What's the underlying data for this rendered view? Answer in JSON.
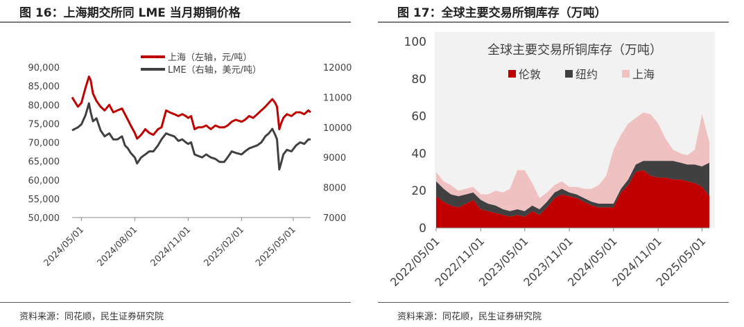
{
  "left": {
    "figure_title": "图 16：上海期交所同 LME 当月期铜价格",
    "source": "资料来源：同花顺，民生证券研究院",
    "chart_data": {
      "type": "line",
      "title": "",
      "x_ticks": [
        "2024/05/01",
        "2024/08/01",
        "2024/11/01",
        "2025/02/01",
        "2025/05/01"
      ],
      "x_range": [
        "2024-04-15",
        "2025-05-31"
      ],
      "left_axis": {
        "ylim": [
          50000,
          90000
        ],
        "ticks": [
          "50,000",
          "55,000",
          "60,000",
          "65,000",
          "70,000",
          "75,000",
          "80,000",
          "85,000",
          "90,000"
        ]
      },
      "right_axis": {
        "ylim": [
          7000,
          12000
        ],
        "ticks": [
          "7000",
          "8000",
          "9000",
          "10000",
          "11000",
          "12000"
        ]
      },
      "legend": [
        "上海（左轴，元/吨）",
        "LME（右轴，美元/吨）"
      ],
      "legend_position": "top-right",
      "colors": {
        "shanghai": "#c00000",
        "lme": "#404040"
      },
      "series": [
        {
          "name": "上海（左轴，元/吨）",
          "axis": "left",
          "x": [
            "2024-04-15",
            "2024-04-25",
            "2024-05-01",
            "2024-05-08",
            "2024-05-14",
            "2024-05-17",
            "2024-05-21",
            "2024-05-27",
            "2024-06-03",
            "2024-06-10",
            "2024-06-18",
            "2024-06-25",
            "2024-07-02",
            "2024-07-10",
            "2024-07-15",
            "2024-07-20",
            "2024-07-25",
            "2024-08-01",
            "2024-08-05",
            "2024-08-12",
            "2024-08-19",
            "2024-08-26",
            "2024-09-02",
            "2024-09-10",
            "2024-09-16",
            "2024-09-24",
            "2024-09-30",
            "2024-10-08",
            "2024-10-15",
            "2024-10-22",
            "2024-10-28",
            "2024-11-01",
            "2024-11-06",
            "2024-11-12",
            "2024-11-18",
            "2024-11-25",
            "2024-12-02",
            "2024-12-10",
            "2024-12-18",
            "2024-12-25",
            "2025-01-02",
            "2025-01-08",
            "2025-01-15",
            "2025-01-22",
            "2025-02-01",
            "2025-02-07",
            "2025-02-14",
            "2025-02-21",
            "2025-02-28",
            "2025-03-07",
            "2025-03-14",
            "2025-03-20",
            "2025-03-26",
            "2025-03-31",
            "2025-04-03",
            "2025-04-07",
            "2025-04-10",
            "2025-04-14",
            "2025-04-20",
            "2025-04-28",
            "2025-05-06",
            "2025-05-13",
            "2025-05-20",
            "2025-05-27",
            "2025-05-31"
          ],
          "values": [
            82000,
            79500,
            80500,
            84500,
            87500,
            86500,
            83000,
            81000,
            79500,
            78500,
            80000,
            78000,
            78500,
            79000,
            77500,
            76000,
            74500,
            72500,
            71000,
            72000,
            73500,
            72500,
            72000,
            73500,
            74000,
            78500,
            78000,
            77500,
            77000,
            77500,
            77000,
            76500,
            77000,
            73500,
            74000,
            74000,
            74500,
            73500,
            74500,
            74000,
            74000,
            74500,
            75500,
            76000,
            75500,
            76000,
            77000,
            76500,
            77500,
            78500,
            79500,
            80500,
            81500,
            80500,
            79500,
            73500,
            75000,
            76500,
            77500,
            77000,
            78000,
            78000,
            77500,
            78500,
            78000
          ]
        },
        {
          "name": "LME（右轴，美元/吨）",
          "axis": "right",
          "x": [
            "2024-04-15",
            "2024-04-25",
            "2024-05-01",
            "2024-05-08",
            "2024-05-14",
            "2024-05-17",
            "2024-05-21",
            "2024-05-27",
            "2024-06-03",
            "2024-06-10",
            "2024-06-18",
            "2024-06-25",
            "2024-07-02",
            "2024-07-10",
            "2024-07-15",
            "2024-07-20",
            "2024-07-25",
            "2024-08-01",
            "2024-08-05",
            "2024-08-12",
            "2024-08-19",
            "2024-08-26",
            "2024-09-02",
            "2024-09-10",
            "2024-09-16",
            "2024-09-24",
            "2024-09-30",
            "2024-10-08",
            "2024-10-15",
            "2024-10-22",
            "2024-10-28",
            "2024-11-01",
            "2024-11-06",
            "2024-11-12",
            "2024-11-18",
            "2024-11-25",
            "2024-12-02",
            "2024-12-10",
            "2024-12-18",
            "2024-12-25",
            "2025-01-02",
            "2025-01-08",
            "2025-01-15",
            "2025-01-22",
            "2025-02-01",
            "2025-02-07",
            "2025-02-14",
            "2025-02-21",
            "2025-02-28",
            "2025-03-07",
            "2025-03-14",
            "2025-03-20",
            "2025-03-26",
            "2025-03-31",
            "2025-04-03",
            "2025-04-07",
            "2025-04-10",
            "2025-04-14",
            "2025-04-20",
            "2025-04-28",
            "2025-05-06",
            "2025-05-13",
            "2025-05-20",
            "2025-05-27",
            "2025-05-31"
          ],
          "values": [
            9900,
            10000,
            10100,
            10400,
            10800,
            10500,
            10200,
            10300,
            9900,
            9700,
            9800,
            9600,
            9600,
            9700,
            9400,
            9300,
            9150,
            9000,
            8800,
            9000,
            9100,
            9200,
            9200,
            9400,
            9600,
            9800,
            9750,
            9700,
            9550,
            9600,
            9500,
            9450,
            9500,
            9100,
            9050,
            9000,
            9100,
            9000,
            8950,
            8850,
            8850,
            9000,
            9200,
            9150,
            9100,
            9200,
            9300,
            9350,
            9400,
            9500,
            9700,
            9800,
            9950,
            9750,
            9600,
            8600,
            8800,
            9100,
            9250,
            9200,
            9400,
            9500,
            9450,
            9600,
            9600
          ]
        }
      ]
    }
  },
  "right": {
    "figure_title": "图 17：全球主要交易所铜库存（万吨）",
    "source": "资料来源：同花顺，民生证券研究院",
    "chart_data": {
      "type": "area",
      "stacked": true,
      "title": "全球主要交易所铜库存（万吨）",
      "x_ticks": [
        "2022/05/01",
        "2022/11/01",
        "2023/05/01",
        "2023/11/01",
        "2024/05/01",
        "2024/11/01",
        "2025/05/01"
      ],
      "x_range": [
        "2022-05-01",
        "2025-05-31"
      ],
      "ylim": [
        0,
        100
      ],
      "y_ticks": [
        "0",
        "20",
        "40",
        "60",
        "80",
        "100"
      ],
      "grid": false,
      "legend": [
        "伦敦",
        "纽约",
        "上海"
      ],
      "legend_position": "top",
      "colors": {
        "london": "#c00000",
        "newyork": "#404040",
        "shanghai": "#f0c1c1",
        "background": "#f2f2f2"
      },
      "x": [
        "2022-05-01",
        "2022-06-01",
        "2022-07-01",
        "2022-08-01",
        "2022-09-01",
        "2022-10-01",
        "2022-11-01",
        "2022-12-01",
        "2023-01-01",
        "2023-02-01",
        "2023-03-01",
        "2023-04-01",
        "2023-05-01",
        "2023-06-01",
        "2023-07-01",
        "2023-08-01",
        "2023-09-01",
        "2023-10-01",
        "2023-11-01",
        "2023-12-01",
        "2024-01-01",
        "2024-02-01",
        "2024-03-01",
        "2024-04-01",
        "2024-05-01",
        "2024-06-01",
        "2024-07-01",
        "2024-08-01",
        "2024-09-01",
        "2024-10-01",
        "2024-11-01",
        "2024-12-01",
        "2025-01-01",
        "2025-02-01",
        "2025-03-01",
        "2025-04-01",
        "2025-05-01",
        "2025-05-31"
      ],
      "series": [
        {
          "name": "伦敦",
          "values": [
            17,
            14,
            12,
            11,
            13,
            15,
            10,
            9,
            8,
            7,
            6,
            7,
            6,
            9,
            7,
            11,
            16,
            18,
            17,
            16,
            14,
            12,
            11,
            11,
            11,
            19,
            23,
            30,
            31,
            28,
            27,
            27,
            26,
            26,
            25,
            24,
            22,
            17
          ]
        },
        {
          "name": "纽约",
          "values": [
            8,
            7,
            6,
            6,
            5,
            4,
            5,
            4,
            4,
            3,
            3,
            3,
            3,
            3,
            3,
            3,
            3,
            3,
            2,
            2,
            2,
            2,
            2,
            2,
            2,
            2,
            3,
            4,
            5,
            8,
            9,
            9,
            10,
            9,
            9,
            10,
            11,
            18
          ]
        },
        {
          "name": "上海",
          "values": [
            5,
            4,
            5,
            3,
            3,
            3,
            3,
            5,
            8,
            9,
            12,
            21,
            22,
            12,
            6,
            5,
            4,
            4,
            3,
            4,
            5,
            7,
            10,
            15,
            29,
            29,
            30,
            25,
            26,
            25,
            20,
            12,
            6,
            5,
            5,
            8,
            28,
            11
          ]
        }
      ]
    }
  }
}
